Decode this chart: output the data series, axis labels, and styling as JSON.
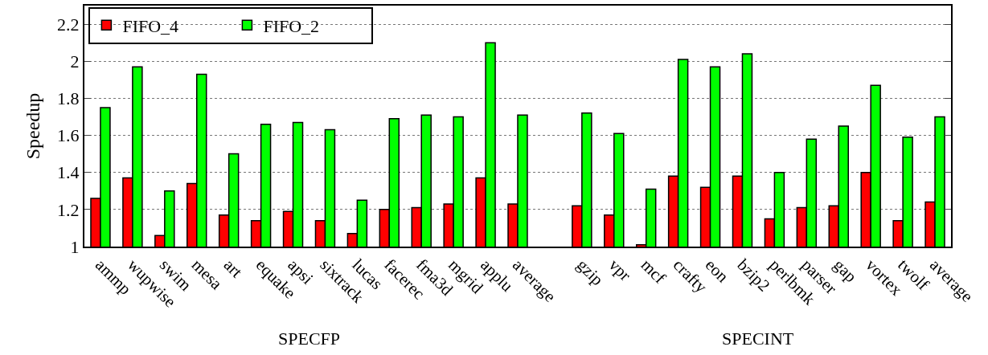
{
  "chart_data": {
    "type": "bar",
    "ylabel": "Speedup",
    "categories": [
      "ammp",
      "wupwise",
      "swim",
      "mesa",
      "art",
      "equake",
      "apsi",
      "sixtrack",
      "lucas",
      "facerec",
      "fma3d",
      "mgrid",
      "applu",
      "average",
      null,
      "gzip",
      "vpr",
      "mcf",
      "crafty",
      "eon",
      "bzip2",
      "perlbmk",
      "parser",
      "gap",
      "vortex",
      "twolf",
      "average"
    ],
    "series": [
      {
        "name": "FIFO_4",
        "color": "#ff0000",
        "values": [
          1.26,
          1.37,
          1.06,
          1.34,
          1.17,
          1.14,
          1.19,
          1.14,
          1.07,
          1.2,
          1.21,
          1.23,
          1.37,
          1.23,
          null,
          1.22,
          1.17,
          1.01,
          1.38,
          1.32,
          1.38,
          1.15,
          1.21,
          1.22,
          1.4,
          1.14,
          1.24
        ]
      },
      {
        "name": "FIFO_2",
        "color": "#00ff00",
        "values": [
          1.75,
          1.97,
          1.3,
          1.93,
          1.5,
          1.66,
          1.67,
          1.63,
          1.25,
          1.69,
          1.71,
          1.7,
          2.1,
          1.71,
          null,
          1.72,
          1.61,
          1.31,
          2.01,
          1.97,
          2.04,
          1.4,
          1.58,
          1.65,
          1.87,
          1.59,
          1.7
        ]
      }
    ],
    "ylim": [
      1,
      2.3
    ],
    "yticks": [
      1,
      1.2,
      1.4,
      1.6,
      1.8,
      2,
      2.2
    ],
    "grid": "y",
    "legend": "top left",
    "annotations": [
      "SPECFP",
      "SPECINT"
    ]
  }
}
